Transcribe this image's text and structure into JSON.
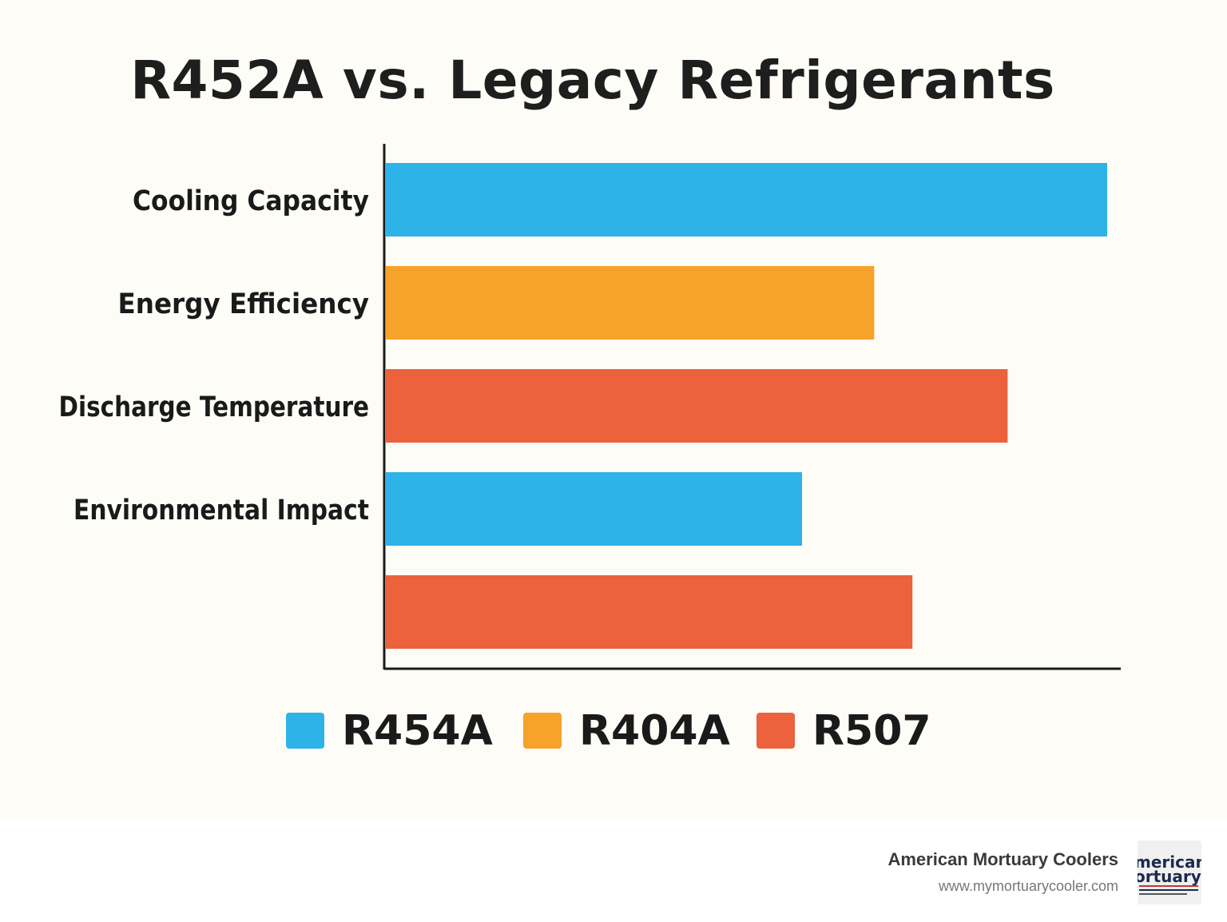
{
  "chart_data": {
    "type": "bar",
    "orientation": "horizontal",
    "title": "R452A vs. Legacy Refrigerants",
    "categories": [
      "Cooling Capacity",
      "Energy Efficiency",
      "Discharge Temperature",
      "Environmental Impact",
      ""
    ],
    "bars": [
      {
        "series": "R454A",
        "value": 100
      },
      {
        "series": "R404A",
        "value": 67.7
      },
      {
        "series": "R507",
        "value": 86.2
      },
      {
        "series": "R454A",
        "value": 57.7
      },
      {
        "series": "R507",
        "value": 73.0
      }
    ],
    "series": [
      {
        "name": "R454A",
        "color": "#2db3e8"
      },
      {
        "name": "R404A",
        "color": "#f7a22a"
      },
      {
        "name": "R507",
        "color": "#eb623d"
      }
    ],
    "xlim": [
      0,
      100
    ],
    "grid": false,
    "legend_position": "bottom"
  },
  "footer": {
    "brand": "American Mortuary Coolers",
    "url": "www.mymortuarycooler.com",
    "logo_text": "American Mortuary"
  }
}
